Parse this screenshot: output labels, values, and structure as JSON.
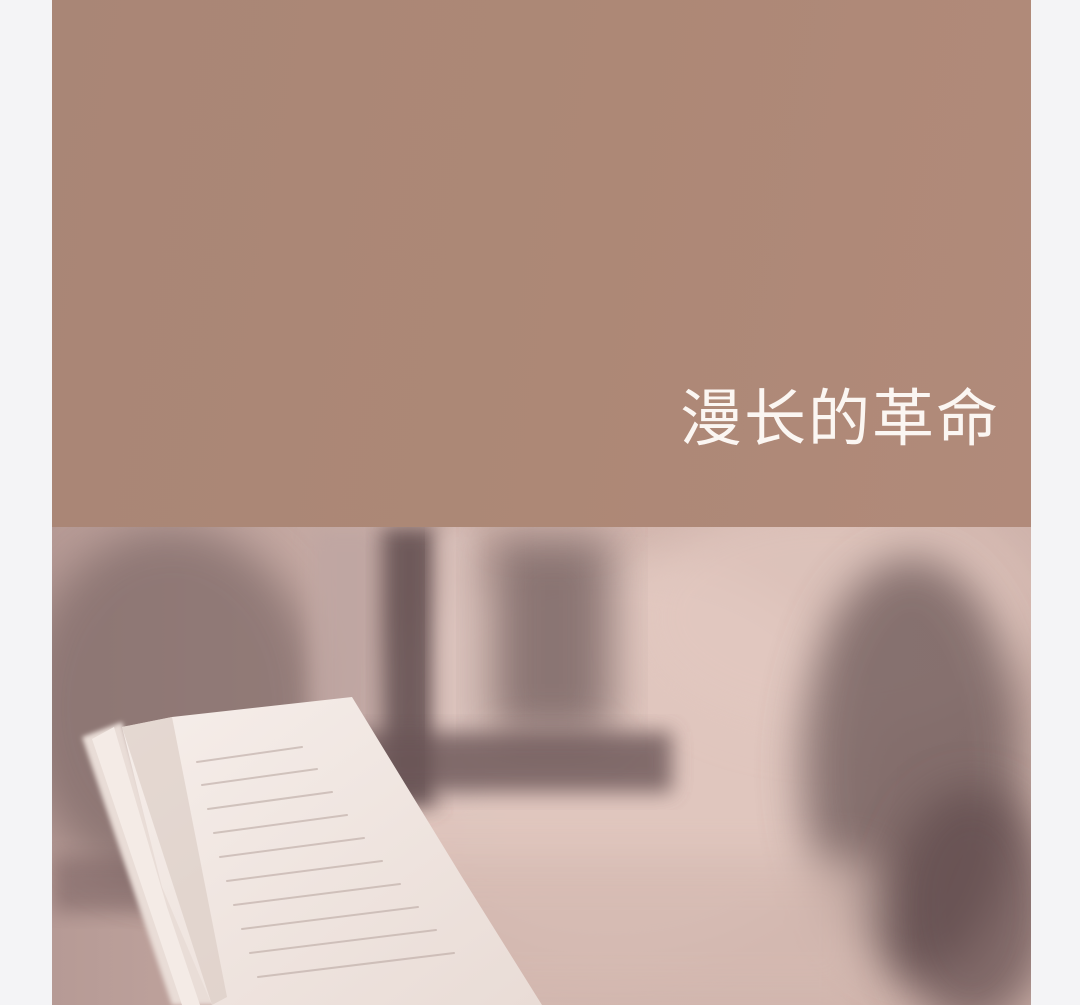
{
  "cover": {
    "title": "漫长的革命"
  },
  "colors": {
    "page_background": "#f4f4f6",
    "cover_top": "#ad8876",
    "title_text": "#fbf6f2",
    "photo_tone": "#c9aca5"
  },
  "icons": {
    "photo": "reading-book-photo"
  }
}
